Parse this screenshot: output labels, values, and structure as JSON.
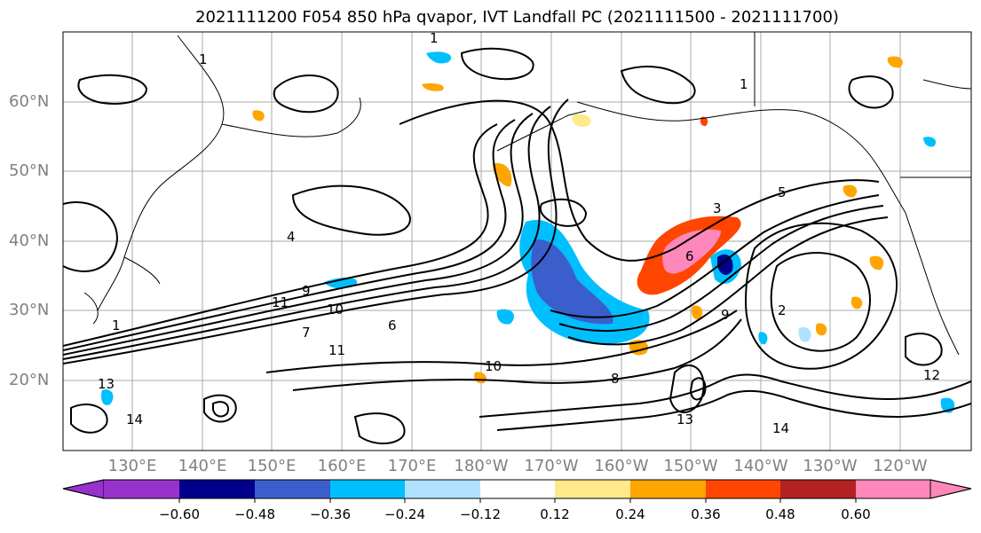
{
  "title": "2021111200 F054 850 hPa qvapor, IVT Landfall PC (2021111500 - 2021111700)",
  "map": {
    "lat_labels": [
      "60°N",
      "50°N",
      "40°N",
      "30°N",
      "20°N"
    ],
    "lon_labels": [
      "130°E",
      "140°E",
      "150°E",
      "160°E",
      "170°E",
      "180°W",
      "170°W",
      "160°W",
      "150°W",
      "140°W",
      "130°W",
      "120°W"
    ],
    "contour_labels": [
      "1",
      "1",
      "1",
      "1",
      "2",
      "3",
      "4",
      "5",
      "6",
      "6",
      "7",
      "8",
      "9",
      "9",
      "10",
      "10",
      "11",
      "11",
      "12",
      "13",
      "13",
      "14",
      "14"
    ]
  },
  "colorbar": {
    "ticks": [
      "−0.60",
      "−0.48",
      "−0.36",
      "−0.24",
      "−0.12",
      "0.12",
      "0.24",
      "0.36",
      "0.48",
      "0.60"
    ],
    "colors": [
      "#9932cc",
      "#00008b",
      "#3a5fcd",
      "#00bfff",
      "#b0e2ff",
      "#ffffff",
      "#ffe98a",
      "#ffa500",
      "#ff4500",
      "#b22222",
      "#ff88bb"
    ]
  }
}
